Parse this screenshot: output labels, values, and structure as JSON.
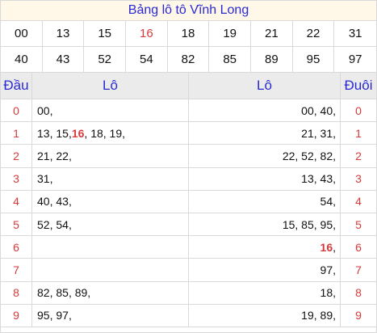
{
  "title": "Bảng lô tô Vĩnh Long",
  "numbers": {
    "row1": [
      "00",
      "13",
      "15",
      "16",
      "18",
      "19",
      "21",
      "22",
      "31"
    ],
    "row2": [
      "40",
      "43",
      "52",
      "54",
      "82",
      "85",
      "89",
      "95",
      "97"
    ],
    "highlight": "16"
  },
  "table": {
    "headers": {
      "dau": "Đầu",
      "lo_left": "Lô",
      "lo_right": "Lô",
      "duoi": "Đuôi"
    },
    "rows": [
      {
        "dau": "0",
        "lo_left": "00,",
        "lo_right": "00, 40,",
        "duoi": "0"
      },
      {
        "dau": "1",
        "lo_left": "13, 15, 16, 18, 19,",
        "lo_right": "21, 31,",
        "duoi": "1"
      },
      {
        "dau": "2",
        "lo_left": "21, 22,",
        "lo_right": "22, 52, 82,",
        "duoi": "2"
      },
      {
        "dau": "3",
        "lo_left": "31,",
        "lo_right": "13, 43,",
        "duoi": "3"
      },
      {
        "dau": "4",
        "lo_left": "40, 43,",
        "lo_right": "54,",
        "duoi": "4"
      },
      {
        "dau": "5",
        "lo_left": "52, 54,",
        "lo_right": "15, 85, 95,",
        "duoi": "5"
      },
      {
        "dau": "6",
        "lo_left": "",
        "lo_right": "16,",
        "duoi": "6"
      },
      {
        "dau": "7",
        "lo_left": "",
        "lo_right": "97,",
        "duoi": "7"
      },
      {
        "dau": "8",
        "lo_left": "82, 85, 89,",
        "lo_right": "18,",
        "duoi": "8"
      },
      {
        "dau": "9",
        "lo_left": "95, 97,",
        "lo_right": "19, 89,",
        "duoi": "9"
      }
    ]
  },
  "colors": {
    "title": "#2a2ad4",
    "highlight": "#d63a3a",
    "header_bg": "#ebebeb",
    "title_bg": "#fff7e8"
  }
}
